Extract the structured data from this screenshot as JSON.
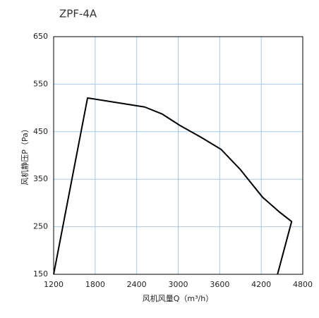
{
  "chart_data": {
    "type": "line",
    "title": "ZPF-4A",
    "x_label": "风机风量Q（m³/h）",
    "y_label": "风机静压P（Pa）",
    "x": [
      1200,
      1690,
      2210,
      2516,
      2771,
      3027,
      3333,
      3618,
      3894,
      4220,
      4455,
      4639,
      4435
    ],
    "series": [
      {
        "color": "#000000",
        "values": [
          150,
          521,
          509,
          502,
          487,
          463,
          438,
          413,
          371,
          312,
          282,
          261,
          150
        ]
      }
    ],
    "xlim": [
      1200,
      4800
    ],
    "xticks": [
      1200,
      1800,
      2400,
      3000,
      3600,
      4200,
      4800
    ],
    "ylim": [
      150,
      650
    ],
    "yticks": [
      150,
      250,
      350,
      450,
      550,
      650
    ],
    "grid": true,
    "grid_color": "#a8c8e8"
  }
}
